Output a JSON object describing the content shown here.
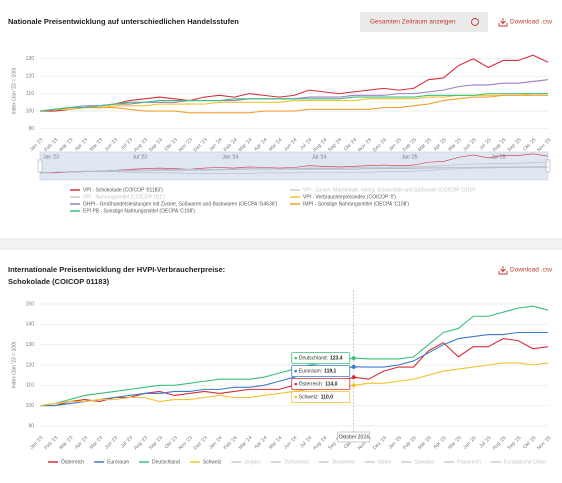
{
  "chart_data": [
    {
      "type": "line",
      "title": [
        "Nationale Preisentwicklung auf unterschiedlichen Handelsstufen"
      ],
      "button": "Gesamten Zeitraum anzeigen",
      "download": "Download .csv",
      "y_label": "Index (Jan '23 = 100)",
      "categories": [
        "Jan '23",
        "Feb '23",
        "Mär '23",
        "Apr '23",
        "Mai '23",
        "Jun '23",
        "Jul '23",
        "Aug '23",
        "Sep '23",
        "Okt '23",
        "Nov '23",
        "Dez '23",
        "Jan '24",
        "Feb '24",
        "Mär '24",
        "Apr '24",
        "Mai '24",
        "Jun '24",
        "Jul '24",
        "Aug '24",
        "Sep '24",
        "Okt '24",
        "Nov '24",
        "Dez '24",
        "Jan '25",
        "Feb '25",
        "Mär '25",
        "Apr '25",
        "Mai '25",
        "Jun '25",
        "Jul '25",
        "Aug '25",
        "Sep '25",
        "Okt '25",
        "Nov '25"
      ],
      "ylim": [
        88,
        135
      ],
      "yticks": [
        90,
        100,
        110,
        120,
        130
      ],
      "grid": true,
      "range_slider": true,
      "series": [
        {
          "name": "VPI - Schokolade (COICOP '01183')",
          "color": "#d62f3a",
          "values": [
            100,
            100,
            101,
            102,
            103,
            104,
            106,
            107,
            108,
            107,
            106,
            108,
            109,
            108,
            110,
            109,
            108,
            109,
            112,
            111,
            110,
            111,
            112,
            113,
            112,
            113,
            118,
            119,
            126,
            130,
            125,
            129,
            129,
            132,
            128
          ]
        },
        {
          "name": "VPI - Zucker, Marmelade, Honig, Schokolade und Süßwaren (COICOP '0118')",
          "color": "#cccccc",
          "hidden": true
        },
        {
          "name": "VPI - Nahrungsmittel (COICOP '011')",
          "color": "#cccccc",
          "hidden": true
        },
        {
          "name": "VPI - Verbraucherpreisindex (COICOP '0')",
          "color": "#f2c230",
          "values": [
            100,
            101,
            101,
            102,
            102,
            103,
            103,
            103,
            104,
            104,
            104,
            104,
            105,
            105,
            105,
            105,
            105,
            106,
            106,
            106,
            106,
            106,
            107,
            107,
            107,
            107,
            108,
            108,
            109,
            109,
            109,
            109,
            109,
            110,
            110
          ]
        },
        {
          "name": "GHPI - Großhandelsleistungen mit Zucker, Süßwaren und Backwaren (OECPA 'G4636')",
          "color": "#9b7fc4",
          "values": [
            100,
            101,
            102,
            103,
            103,
            104,
            104,
            105,
            105,
            105,
            106,
            106,
            106,
            106,
            107,
            107,
            107,
            107,
            108,
            108,
            108,
            109,
            109,
            109,
            110,
            110,
            111,
            112,
            114,
            115,
            115,
            116,
            116,
            117,
            118
          ]
        },
        {
          "name": "IMPI - Sonstige Nahrungsmittel (OECPA 'C108')",
          "color": "#f0a030",
          "values": [
            100,
            101,
            102,
            102,
            102,
            102,
            101,
            100,
            100,
            100,
            99,
            99,
            99,
            99,
            99,
            100,
            100,
            100,
            101,
            101,
            101,
            101,
            101,
            102,
            102,
            103,
            104,
            106,
            107,
            108,
            108,
            109,
            109,
            109,
            109
          ]
        },
        {
          "name": "EPI PB - Sonstige Nahrungsmittel (OECPA 'C108')",
          "color": "#3cbf7a",
          "values": [
            100,
            101,
            102,
            102,
            103,
            104,
            105,
            105,
            106,
            106,
            106,
            106,
            106,
            107,
            107,
            107,
            107,
            107,
            107,
            107,
            107,
            108,
            108,
            108,
            108,
            108,
            109,
            109,
            109,
            109,
            110,
            110,
            110,
            110,
            110
          ]
        }
      ]
    },
    {
      "type": "line",
      "title": [
        "Internationale Preisentwicklung der HVPI-Verbraucherpreise:",
        "Schokolade (COICOP 01183)"
      ],
      "download": "Download .csv",
      "y_label": "Index (Jan '23 = 100)",
      "categories": [
        "Jan '23",
        "Feb '23",
        "Mär '23",
        "Apr '23",
        "Mai '23",
        "Jun '23",
        "Jul '23",
        "Aug '23",
        "Sep '23",
        "Okt '23",
        "Nov '23",
        "Dez '23",
        "Jan '24",
        "Feb '24",
        "Mär '24",
        "Apr '24",
        "Mai '24",
        "Jun '24",
        "Jul '24",
        "Aug '24",
        "Sep '24",
        "Okt '24",
        "Nov '24",
        "Dez '24",
        "Jan '25",
        "Feb '25",
        "Mär '25",
        "Apr '25",
        "Mai '25",
        "Jun '25",
        "Jul '25",
        "Aug '25",
        "Sep '25",
        "Okt '25",
        "Nov '25"
      ],
      "ylim": [
        88,
        152
      ],
      "yticks": [
        90,
        100,
        110,
        120,
        130,
        140,
        150
      ],
      "grid": true,
      "series": [
        {
          "name": "Österreich",
          "color": "#d62f3a",
          "values": [
            100,
            100,
            102,
            103,
            102,
            104,
            104,
            106,
            107,
            105,
            106,
            107,
            106,
            107,
            108,
            108,
            108,
            110,
            110,
            111,
            112,
            114.0,
            113,
            117,
            119,
            119,
            127,
            131,
            124,
            129,
            129,
            133,
            132,
            128,
            129
          ]
        },
        {
          "name": "Euroraum",
          "color": "#3d7cc9",
          "values": [
            100,
            100,
            101,
            102,
            103,
            104,
            105,
            106,
            106,
            107,
            107,
            108,
            108,
            109,
            109,
            110,
            112,
            114,
            116,
            117,
            118,
            119.1,
            119,
            119,
            120,
            122,
            126,
            130,
            133,
            134,
            135,
            135,
            136,
            136,
            136
          ]
        },
        {
          "name": "Deutschland",
          "color": "#3cbf7a",
          "values": [
            100,
            101,
            103,
            105,
            106,
            107,
            108,
            109,
            110,
            110,
            111,
            112,
            113,
            113,
            113,
            114,
            116,
            118,
            120,
            121,
            122,
            123.4,
            123,
            123,
            123,
            124,
            130,
            136,
            138,
            144,
            144,
            146,
            148,
            149,
            147
          ]
        },
        {
          "name": "Schweiz",
          "color": "#f2c230",
          "values": [
            100,
            101,
            102,
            102,
            103,
            103,
            104,
            104,
            102,
            103,
            103,
            104,
            105,
            104,
            104,
            105,
            106,
            107,
            108,
            109,
            109,
            110.0,
            111,
            111,
            112,
            113,
            115,
            117,
            118,
            119,
            120,
            121,
            121,
            120,
            121
          ]
        },
        {
          "name": "Ungarn",
          "color": "#cccccc",
          "hidden": true
        },
        {
          "name": "Tschechien",
          "color": "#cccccc",
          "hidden": true
        },
        {
          "name": "Slowenien",
          "color": "#cccccc",
          "hidden": true
        },
        {
          "name": "Italien",
          "color": "#cccccc",
          "hidden": true
        },
        {
          "name": "Slowakei",
          "color": "#cccccc",
          "hidden": true
        },
        {
          "name": "Frankreich",
          "color": "#cccccc",
          "hidden": true
        },
        {
          "name": "Europäische Union",
          "color": "#cccccc",
          "hidden": true
        }
      ],
      "tooltip": {
        "title": "Oktober 2024",
        "x": "Okt '24",
        "entries": [
          {
            "name": "Deutschland:",
            "value": 123.4,
            "label": "123,4",
            "color": "#3cbf7a"
          },
          {
            "name": "Euroraum:",
            "value": 119.1,
            "label": "119,1",
            "color": "#3d7cc9"
          },
          {
            "name": "Österreich:",
            "value": 114.0,
            "label": "114,0",
            "color": "#d62f3a"
          },
          {
            "name": "Schweiz:",
            "value": 110.0,
            "label": "110,0",
            "color": "#f2c230"
          }
        ]
      }
    }
  ]
}
